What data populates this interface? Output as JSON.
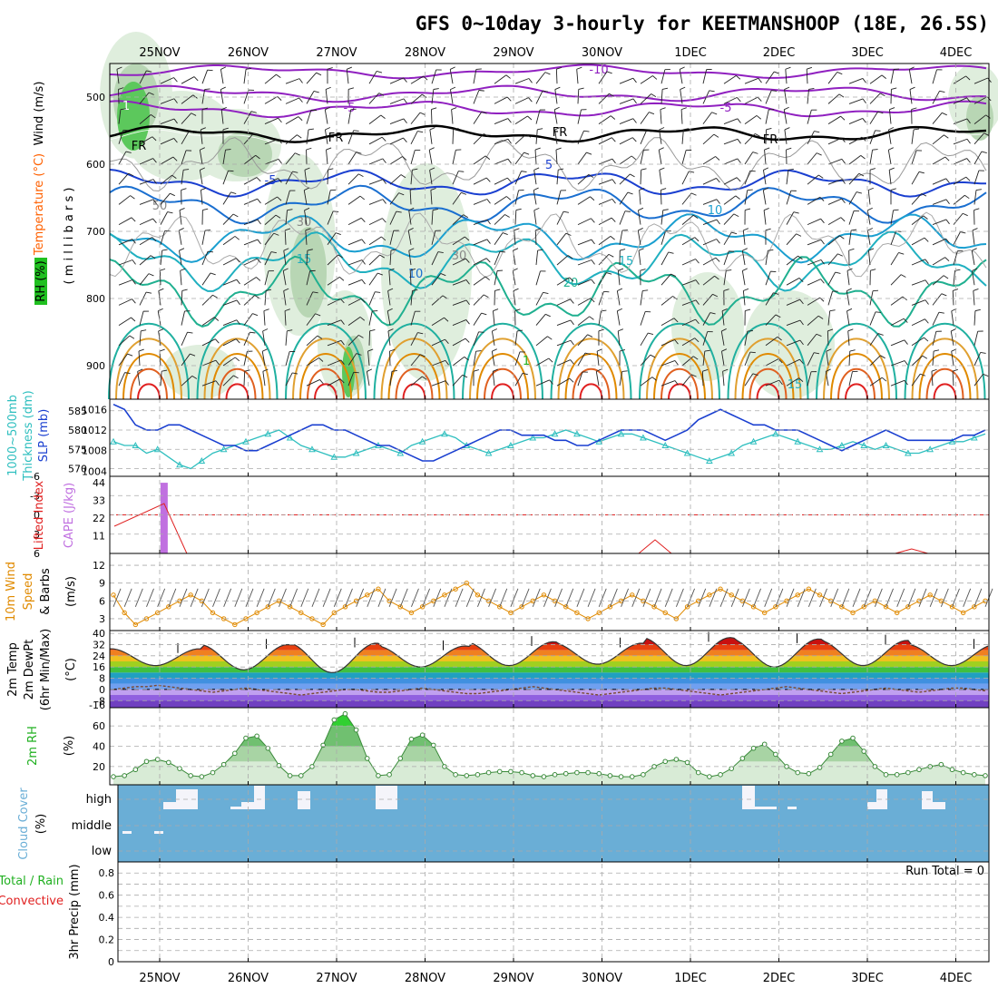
{
  "title": "GFS 0~10day 3-hourly for KEETMANSHOOP (18E, 26.5S)",
  "colors": {
    "orange": "#e08a00",
    "temp_label": "#ff6000",
    "cyan": "#2fbfbf",
    "blue": "#1a3fd0",
    "purple": "#9020c0",
    "red": "#e02020",
    "magenta": "#c070e0",
    "green": "#20b020",
    "cloud_blue": "#6aaed6"
  },
  "labels": {
    "wind": "Wind (m/s)",
    "temperature": "Temperature (°C)",
    "millibars": "( m i l l i b a r s )",
    "rh": "RH (%)",
    "thickness": "1000~500mb",
    "thickness2": "Thickness (dm)",
    "slp": "SLP (mb)",
    "lifted": "Lifted Index",
    "cape": "CAPE (J/kg)",
    "wind10": "10m Wind",
    "speed": "Speed",
    "barbs": "& Barbs",
    "ms": "(m/s)",
    "temp2m": "2m Temp",
    "dewpt": "2m DewPt",
    "minmax": "(6hr Min/Max)",
    "degc": "(°C)",
    "rh2m": "2m RH",
    "pct": "(%)",
    "cloud": "Cloud Cover",
    "cloud_pct": "(%)",
    "precip_total": "Total / Rain",
    "precip_conv": "Convective",
    "precip": "3hr Precip (mm)",
    "run_total": "Run Total = 0"
  },
  "chart_data": [
    {
      "type": "heatmap",
      "name": "upper-air",
      "dates": [
        "25NOV",
        "26NOV",
        "27NOV",
        "28NOV",
        "29NOV",
        "30NOV",
        "1DEC",
        "2DEC",
        "3DEC",
        "4DEC"
      ],
      "yticks": [
        "500",
        "600",
        "700",
        "800",
        "900"
      ],
      "contour_labels": [
        "-10",
        "-5",
        "-5",
        "FR",
        "FR",
        "FR",
        "FR",
        "-5",
        "5",
        "10",
        "10",
        "15",
        "15",
        "20",
        "15",
        "1",
        "1",
        "30",
        "30",
        "50"
      ]
    },
    {
      "type": "line",
      "name": "thickness-slp",
      "left_ticks": [
        "585",
        "580",
        "575",
        "570"
      ],
      "right_ticks": [
        "1016",
        "1012",
        "1008",
        "1004"
      ],
      "thickness": [
        577,
        576,
        576,
        574,
        575,
        573,
        571,
        570,
        572,
        574,
        575,
        576,
        577,
        578,
        579,
        580,
        578,
        576,
        575,
        574,
        573,
        573,
        574,
        575,
        576,
        575,
        574,
        576,
        577,
        578,
        579,
        578,
        576,
        575,
        574,
        575,
        576,
        577,
        578,
        578,
        579,
        580,
        579,
        578,
        577,
        578,
        579,
        579,
        578,
        577,
        576,
        575,
        574,
        573,
        572,
        573,
        574,
        576,
        577,
        578,
        579,
        578,
        577,
        576,
        575,
        575,
        576,
        577,
        576,
        575,
        576,
        575,
        574,
        574,
        575,
        576,
        577,
        577,
        578,
        579
      ],
      "slp": [
        1017,
        1016,
        1013,
        1012,
        1012,
        1013,
        1013,
        1012,
        1011,
        1010,
        1009,
        1009,
        1008,
        1008,
        1009,
        1010,
        1011,
        1012,
        1013,
        1013,
        1012,
        1012,
        1011,
        1010,
        1009,
        1009,
        1008,
        1007,
        1006,
        1006,
        1007,
        1008,
        1009,
        1010,
        1011,
        1012,
        1012,
        1011,
        1011,
        1011,
        1010,
        1010,
        1009,
        1009,
        1010,
        1011,
        1012,
        1012,
        1012,
        1011,
        1010,
        1011,
        1012,
        1014,
        1015,
        1016,
        1015,
        1014,
        1013,
        1013,
        1012,
        1012,
        1012,
        1011,
        1010,
        1009,
        1008,
        1009,
        1010,
        1011,
        1012,
        1011,
        1010,
        1010,
        1010,
        1010,
        1010,
        1011,
        1011,
        1012
      ]
    },
    {
      "type": "bar",
      "name": "cape-lifted",
      "left_ticks": [
        "-6",
        "-3",
        "0",
        "3",
        "6"
      ],
      "right_ticks": [
        "44",
        "33",
        "22",
        "11"
      ],
      "cape_bar_value": 44,
      "cape_bar_day": 0.55
    },
    {
      "type": "line",
      "name": "wind10m",
      "yticks": [
        "12",
        "9",
        "6",
        "3"
      ],
      "speed": [
        7,
        4,
        2,
        3,
        4,
        5,
        6,
        7,
        6,
        4,
        3,
        2,
        3,
        4,
        5,
        6,
        5,
        4,
        3,
        2,
        4,
        5,
        6,
        7,
        8,
        6,
        5,
        4,
        5,
        6,
        7,
        8,
        9,
        7,
        6,
        5,
        4,
        5,
        6,
        7,
        6,
        5,
        4,
        3,
        4,
        5,
        6,
        7,
        6,
        5,
        4,
        3,
        5,
        6,
        7,
        8,
        7,
        6,
        5,
        4,
        5,
        6,
        7,
        8,
        7,
        6,
        5,
        4,
        5,
        6,
        5,
        4,
        5,
        6,
        7,
        6,
        5,
        4,
        5,
        6
      ]
    },
    {
      "type": "area",
      "name": "temp2m",
      "yticks": [
        "40",
        "32",
        "24",
        "16",
        "8",
        "0",
        "-8"
      ],
      "temp_max_by_day": [
        29,
        32,
        33,
        31,
        34,
        33,
        37,
        36,
        35,
        32
      ],
      "temp_min_by_day": [
        17,
        14,
        12,
        16,
        17,
        18,
        17,
        16,
        17,
        17
      ],
      "dewpoint": [
        0,
        1,
        2,
        2,
        3,
        2,
        1,
        0,
        -1,
        -2,
        -1,
        0,
        1,
        0,
        -1,
        -2,
        -3,
        -4,
        -3,
        -2,
        -1,
        0,
        0,
        -1,
        -2,
        -2,
        -1,
        0,
        1,
        0,
        -1,
        -2,
        -3,
        -3,
        -2,
        -1,
        0,
        1,
        2,
        1,
        0,
        -1,
        -2,
        -3,
        -4,
        -3,
        -2,
        -1,
        0,
        1,
        1,
        0,
        -1,
        -2,
        -3,
        -4,
        -3,
        -2,
        -1,
        0,
        1,
        2,
        1,
        0,
        -1,
        -2,
        -3,
        -2,
        -1,
        0,
        1,
        0,
        -1,
        -2,
        -1,
        0,
        1,
        1,
        0,
        -1
      ]
    },
    {
      "type": "area",
      "name": "rh2m",
      "yticks": [
        "60",
        "40",
        "20"
      ],
      "rh": [
        10,
        11,
        17,
        25,
        27,
        24,
        18,
        11,
        10,
        14,
        22,
        33,
        48,
        50,
        38,
        21,
        11,
        11,
        20,
        41,
        66,
        72,
        56,
        28,
        11,
        12,
        28,
        47,
        51,
        41,
        20,
        12,
        11,
        12,
        14,
        15,
        15,
        14,
        11,
        10,
        12,
        13,
        14,
        14,
        13,
        11,
        10,
        10,
        12,
        20,
        25,
        27,
        24,
        14,
        10,
        12,
        18,
        28,
        38,
        42,
        32,
        20,
        14,
        13,
        19,
        32,
        45,
        48,
        35,
        20,
        12,
        12,
        14,
        17,
        20,
        22,
        17,
        14,
        12,
        11
      ]
    },
    {
      "type": "bar",
      "name": "cloud-cover",
      "yticks": [
        "high",
        "middle",
        "low"
      ]
    },
    {
      "type": "bar",
      "name": "precip",
      "yticks": [
        "0.8",
        "0.6",
        "0.4",
        "0.2",
        "0"
      ],
      "values": []
    }
  ]
}
